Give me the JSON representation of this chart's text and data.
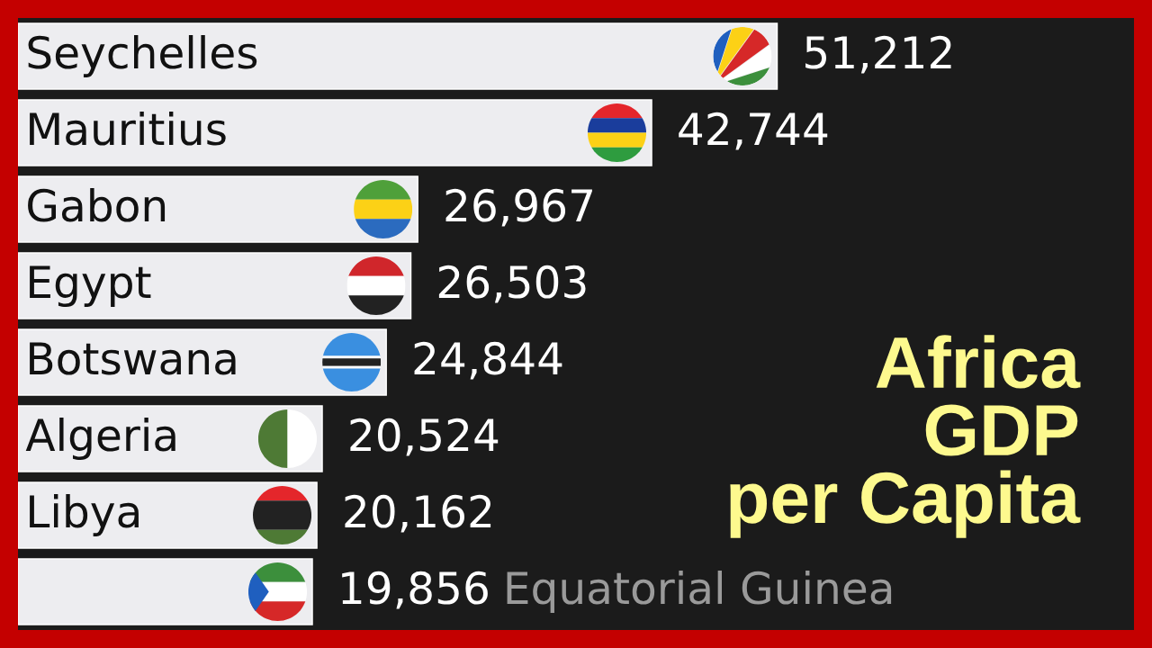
{
  "chart_data": {
    "type": "bar",
    "orientation": "horizontal",
    "title": "Africa\nGDP\nper Capita",
    "categories": [
      "Seychelles",
      "Mauritius",
      "Gabon",
      "Egypt",
      "Botswana",
      "Algeria",
      "Libya",
      "Equatorial Guinea"
    ],
    "values": [
      51212,
      42744,
      26967,
      26503,
      24844,
      20524,
      20162,
      19856
    ],
    "value_labels": [
      "51,212",
      "42,744",
      "26,967",
      "26,503",
      "24,844",
      "20,524",
      "20,162",
      "19,856"
    ],
    "color": "#ededf0",
    "tick_labels": "y"
  }
}
